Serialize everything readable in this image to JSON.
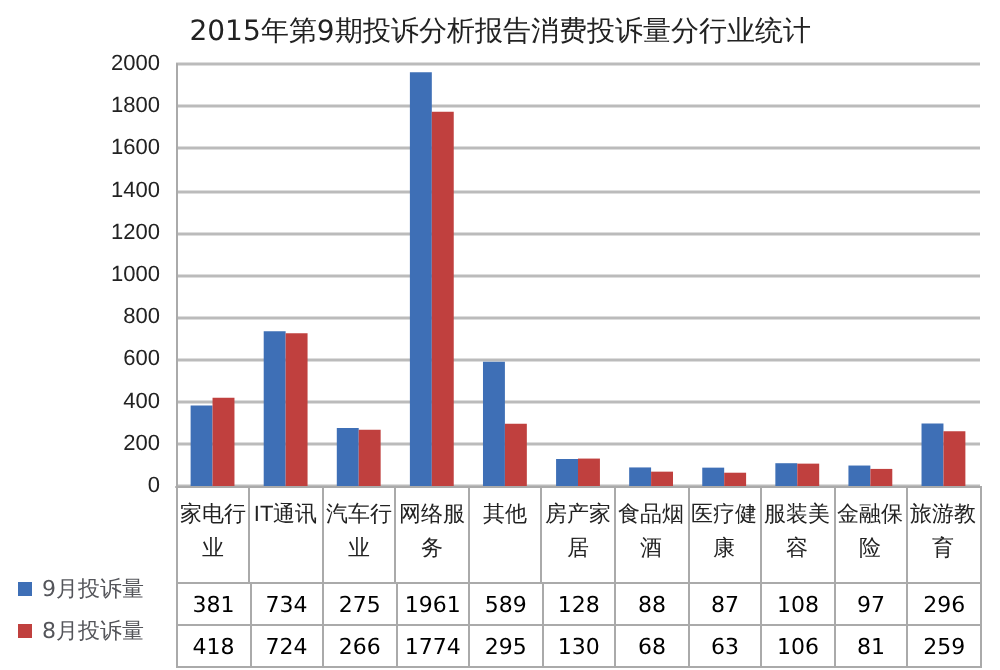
{
  "chart_data": {
    "type": "bar",
    "title": "2015年第9期投诉分析报告消费投诉量分行业统计",
    "categories": [
      "家电行业",
      "IT通讯",
      "汽车行业",
      "网络服务",
      "其他",
      "房产家居",
      "食品烟酒",
      "医疗健康",
      "服装美容",
      "金融保险",
      "旅游教育"
    ],
    "series": [
      {
        "name": "9月投诉量",
        "color": "#3e6fb6",
        "values": [
          381,
          734,
          275,
          1961,
          589,
          128,
          88,
          87,
          108,
          97,
          296
        ]
      },
      {
        "name": "8月投诉量",
        "color": "#c0403e",
        "values": [
          418,
          724,
          266,
          1774,
          295,
          130,
          68,
          63,
          106,
          81,
          259
        ]
      }
    ],
    "ylim": [
      0,
      2000
    ],
    "yticks": [
      0,
      200,
      400,
      600,
      800,
      1000,
      1200,
      1400,
      1600,
      1800,
      2000
    ],
    "grid": "y",
    "legend": "bottom left",
    "data_labels": true
  }
}
